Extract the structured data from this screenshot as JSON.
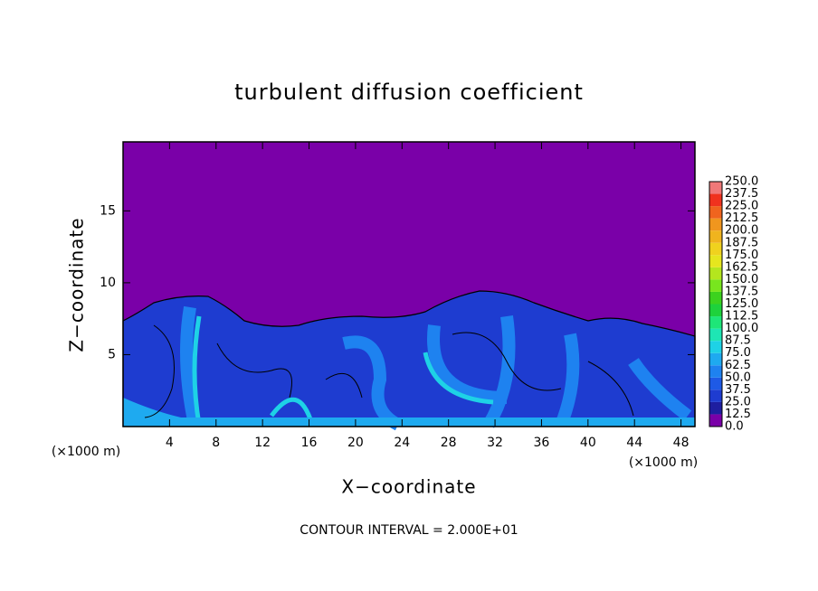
{
  "chart_data": {
    "type": "contour",
    "title": "turbulent diffusion coefficient",
    "xlabel": "X−coordinate",
    "ylabel": "Z−coordinate",
    "x_units": [
      "(×1000 m)",
      "(×1000 m)"
    ],
    "footer": "CONTOUR INTERVAL = 2.000E+01",
    "xlim": [
      0,
      49.2
    ],
    "ylim": [
      0,
      19.8
    ],
    "xticks": [
      4,
      8,
      12,
      16,
      20,
      24,
      28,
      32,
      36,
      40,
      44,
      48
    ],
    "yticks": [
      5,
      10,
      15
    ],
    "colorbar": {
      "levels": [
        {
          "value": 0,
          "label": "0.0"
        },
        {
          "value": 12.5,
          "label": "12.5"
        },
        {
          "value": 25,
          "label": "25.0"
        },
        {
          "value": 37.5,
          "label": "37.5"
        },
        {
          "value": 50,
          "label": "50.0"
        },
        {
          "value": 62.5,
          "label": "62.5"
        },
        {
          "value": 75,
          "label": "75.0"
        },
        {
          "value": 87.5,
          "label": "87.5"
        },
        {
          "value": 100,
          "label": "100.0"
        },
        {
          "value": 112.5,
          "label": "112.5"
        },
        {
          "value": 125,
          "label": "125.0"
        },
        {
          "value": 137.5,
          "label": "137.5"
        },
        {
          "value": 150,
          "label": "150.0"
        },
        {
          "value": 162.5,
          "label": "162.5"
        },
        {
          "value": 175,
          "label": "175.0"
        },
        {
          "value": 187.5,
          "label": "187.5"
        },
        {
          "value": 200,
          "label": "200.0"
        },
        {
          "value": 212.5,
          "label": "212.5"
        },
        {
          "value": 225,
          "label": "225.0"
        },
        {
          "value": 237.5,
          "label": "237.5"
        },
        {
          "value": 250,
          "label": "250.0"
        }
      ],
      "colors": [
        "#7a00a8",
        "#1e1ea0",
        "#1e3cd0",
        "#1e5ae6",
        "#1e82f0",
        "#1eaaf0",
        "#1ed2e6",
        "#1ee6b4",
        "#1ee678",
        "#1ed23c",
        "#3cd21e",
        "#78e61e",
        "#b4e61e",
        "#e6e61e",
        "#f0d21e",
        "#f0b41e",
        "#f0961e",
        "#f0641e",
        "#f0321e",
        "#f07878"
      ]
    }
  }
}
